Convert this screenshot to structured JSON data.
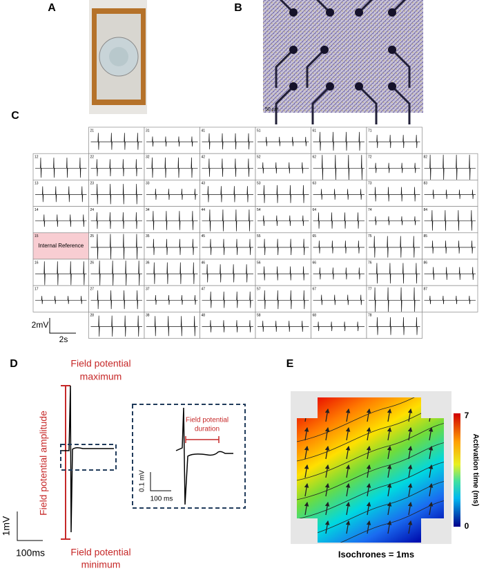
{
  "panels": {
    "a": {
      "label": "A"
    },
    "b": {
      "label": "B",
      "scale_bar": "50 µm"
    },
    "c": {
      "label": "C",
      "grid": {
        "rows": [
          [
            null,
            "21",
            "31",
            "41",
            "51",
            "61",
            "71",
            null
          ],
          [
            "12",
            "22",
            "32",
            "42",
            "52",
            "62",
            "72",
            "82"
          ],
          [
            "13",
            "23",
            "33",
            "43",
            "53",
            "63",
            "73",
            "83"
          ],
          [
            "14",
            "24",
            "34",
            "44",
            "54",
            "64",
            "74",
            "84"
          ],
          [
            "15",
            "25",
            "35",
            "45",
            "55",
            "65",
            "75",
            "85"
          ],
          [
            "16",
            "26",
            "36",
            "46",
            "56",
            "66",
            "76",
            "86"
          ],
          [
            "17",
            "27",
            "37",
            "47",
            "57",
            "67",
            "77",
            "87"
          ],
          [
            null,
            "28",
            "38",
            "48",
            "58",
            "68",
            "78",
            null
          ]
        ]
      },
      "internal_reference": "Internal Reference",
      "scale_voltage": "2mV",
      "scale_time": "2s"
    },
    "d": {
      "label": "D",
      "maximum": [
        "Field potential",
        "maximum"
      ],
      "amplitude": "Field potential amplitude",
      "minimum": [
        "Field potential",
        "minimum"
      ],
      "duration": [
        "Field potential",
        "duration"
      ],
      "inset_voltage": "0.1 mV",
      "inset_time": "100 ms",
      "scale_voltage": "1mV",
      "scale_time": "100ms"
    },
    "e": {
      "label": "E",
      "colorbar_max": 7,
      "colorbar_min": 0,
      "colorbar_label": "Activation time (ms)",
      "caption": "Isochrones = 1ms"
    }
  }
}
